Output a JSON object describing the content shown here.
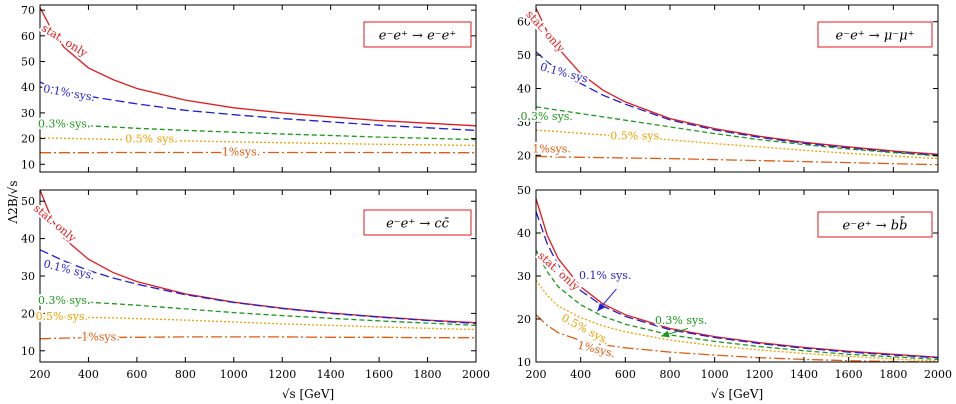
{
  "figure": {
    "ylabel": "Λ2B/√s",
    "xlabel": "√s [GeV]",
    "colors": {
      "stat": "#e41a1c",
      "sys01": "#1f1fd6",
      "sys03": "#1a9a1a",
      "sys05": "#f0a000",
      "sys1": "#e45a10"
    }
  },
  "chart_data": [
    {
      "type": "line",
      "title": "e⁻e⁺ → e⁻e⁺",
      "xlabel": "",
      "ylabel": "",
      "xlim": [
        200,
        2000
      ],
      "ylim": [
        7,
        72
      ],
      "xticks": [
        200,
        400,
        600,
        800,
        1000,
        1200,
        1400,
        1600,
        1800,
        2000
      ],
      "yticks": [
        10,
        20,
        30,
        40,
        50,
        60,
        70
      ],
      "show_xticklabels": false,
      "x": [
        200,
        250,
        300,
        400,
        500,
        600,
        800,
        1000,
        1200,
        1400,
        1600,
        1800,
        2000
      ],
      "series": [
        {
          "key": "stat",
          "label": "stat. only",
          "values": [
            71,
            62,
            55.5,
            47.5,
            43,
            39.5,
            35,
            32,
            30,
            28.5,
            27,
            26,
            25
          ]
        },
        {
          "key": "sys01",
          "label": "0.1% sys.",
          "values": [
            42,
            40,
            38.5,
            36.5,
            35,
            33.5,
            31,
            29.3,
            27.8,
            26.5,
            25.2,
            24.2,
            23.2
          ]
        },
        {
          "key": "sys03",
          "label": "0.3% sys.",
          "values": [
            26,
            25.8,
            25.5,
            25,
            24.5,
            24,
            23.2,
            22.5,
            21.8,
            21.2,
            20.6,
            20.1,
            19.6
          ]
        },
        {
          "key": "sys05",
          "label": "0.5% sys.",
          "values": [
            20.3,
            20.2,
            20.1,
            19.9,
            19.7,
            19.5,
            19.1,
            18.7,
            18.4,
            18.1,
            17.8,
            17.6,
            17.3
          ]
        },
        {
          "key": "sys1",
          "label": "1%sys.",
          "values": [
            14.5,
            14.5,
            14.5,
            14.5,
            14.6,
            14.6,
            14.6,
            14.6,
            14.6,
            14.6,
            14.6,
            14.5,
            14.5
          ]
        }
      ],
      "labels": [
        {
          "key": "stat",
          "text": "stat. only",
          "x": 300,
          "y": 58,
          "rot": 32
        },
        {
          "key": "sys01",
          "text": "0.1% sys.",
          "x": 320,
          "y": 37.5,
          "rot": 10
        },
        {
          "key": "sys03",
          "text": "0.3% sys.",
          "x": 300,
          "y": 25.5,
          "rot": 0
        },
        {
          "key": "sys05",
          "text": "0.5% sys.",
          "x": 660,
          "y": 19.7,
          "rot": 0
        },
        {
          "key": "sys1",
          "text": "1%sys.",
          "x": 1030,
          "y": 14.6,
          "rot": 0
        }
      ]
    },
    {
      "type": "line",
      "title": "e⁻e⁺ → μ⁻μ⁺",
      "xlabel": "",
      "ylabel": "",
      "xlim": [
        200,
        2000
      ],
      "ylim": [
        15,
        65
      ],
      "xticks": [
        200,
        400,
        600,
        800,
        1000,
        1200,
        1400,
        1600,
        1800,
        2000
      ],
      "yticks": [
        20,
        30,
        40,
        50,
        60
      ],
      "show_xticklabels": false,
      "x": [
        200,
        250,
        300,
        400,
        500,
        600,
        800,
        1000,
        1200,
        1400,
        1600,
        1800,
        2000
      ],
      "series": [
        {
          "key": "stat",
          "label": "stat. only",
          "values": [
            64,
            57,
            52,
            44.5,
            39.5,
            36,
            31,
            28,
            25.7,
            23.9,
            22.5,
            21.3,
            20.3
          ]
        },
        {
          "key": "sys01",
          "label": "0.1% sys.",
          "values": [
            51,
            48,
            45.5,
            41.5,
            38,
            35.3,
            30.6,
            27.6,
            25.4,
            23.6,
            22.2,
            21,
            20
          ]
        },
        {
          "key": "sys03",
          "label": "0.3% sys.",
          "values": [
            34.5,
            34,
            33.5,
            32.5,
            31.5,
            30.5,
            28.5,
            26.5,
            24.7,
            23.2,
            21.9,
            20.8,
            19.8
          ]
        },
        {
          "key": "sys05",
          "label": "0.5% sys.",
          "values": [
            27.5,
            27.3,
            27.1,
            26.6,
            26.1,
            25.6,
            24.6,
            23.5,
            22.5,
            21.5,
            20.6,
            19.8,
            19
          ]
        },
        {
          "key": "sys1",
          "label": "1%sys.",
          "values": [
            19.7,
            19.6,
            19.5,
            19.4,
            19.3,
            19.2,
            19,
            18.7,
            18.4,
            18.1,
            17.8,
            17.5,
            17.2
          ]
        }
      ],
      "labels": [
        {
          "key": "stat",
          "text": "stat. only",
          "x": 240,
          "y": 57,
          "rot": 48
        },
        {
          "key": "sys01",
          "text": "0.1% sys",
          "x": 325,
          "y": 44.5,
          "rot": 15
        },
        {
          "key": "sys03",
          "text": "0.3% sys.",
          "x": 248,
          "y": 31.5,
          "rot": 0
        },
        {
          "key": "sys05",
          "text": "0.5% sys.",
          "x": 650,
          "y": 25.6,
          "rot": 0
        },
        {
          "key": "sys1",
          "text": "1%sys.",
          "x": 270,
          "y": 21.8,
          "rot": 0
        }
      ]
    },
    {
      "type": "line",
      "title": "e⁻e⁺ → cc̄",
      "xlabel": "√s [GeV]",
      "ylabel": "",
      "xlim": [
        200,
        2000
      ],
      "ylim": [
        7,
        53
      ],
      "xticks": [
        200,
        400,
        600,
        800,
        1000,
        1200,
        1400,
        1600,
        1800,
        2000
      ],
      "yticks": [
        10,
        20,
        30,
        40,
        50
      ],
      "show_xticklabels": true,
      "x": [
        200,
        250,
        300,
        400,
        500,
        600,
        800,
        1000,
        1200,
        1400,
        1600,
        1800,
        2000
      ],
      "series": [
        {
          "key": "stat",
          "label": "stat. only",
          "values": [
            53,
            45,
            40,
            34.5,
            31,
            28.5,
            25.2,
            23,
            21.4,
            20.1,
            19.1,
            18.2,
            17.5
          ]
        },
        {
          "key": "sys01",
          "label": "0.1% sys.",
          "values": [
            37,
            35.5,
            34,
            31.5,
            29.5,
            27.8,
            25,
            22.9,
            21.3,
            20,
            19,
            18.1,
            17.3
          ]
        },
        {
          "key": "sys03",
          "label": "0.3% sys.",
          "values": [
            23.5,
            23.4,
            23.3,
            23,
            22.6,
            22.2,
            21.2,
            20.2,
            19.4,
            18.7,
            18,
            17.4,
            16.8
          ]
        },
        {
          "key": "sys05",
          "label": "0.5% sys.",
          "values": [
            19,
            19,
            19,
            18.9,
            18.8,
            18.6,
            18.2,
            17.7,
            17.2,
            16.8,
            16.4,
            16,
            15.7
          ]
        },
        {
          "key": "sys1",
          "label": "1%sys.",
          "values": [
            13.2,
            13.3,
            13.4,
            13.5,
            13.6,
            13.6,
            13.7,
            13.7,
            13.7,
            13.6,
            13.6,
            13.5,
            13.5
          ]
        }
      ],
      "labels": [
        {
          "key": "stat",
          "text": "stat. only",
          "x": 260,
          "y": 44,
          "rot": 40
        },
        {
          "key": "sys01",
          "text": "0.1% sys.",
          "x": 320,
          "y": 31.5,
          "rot": 14
        },
        {
          "key": "sys03",
          "text": "0.3% sys.",
          "x": 300,
          "y": 23.3,
          "rot": 0
        },
        {
          "key": "sys05",
          "text": "0.5% sys.",
          "x": 290,
          "y": 19,
          "rot": 0
        },
        {
          "key": "sys1",
          "text": "1%sys.",
          "x": 450,
          "y": 13.5,
          "rot": 0
        }
      ]
    },
    {
      "type": "line",
      "title": "e⁻e⁺ → bb̄",
      "xlabel": "√s [GeV]",
      "ylabel": "",
      "xlim": [
        200,
        2000
      ],
      "ylim": [
        10,
        50
      ],
      "xticks": [
        200,
        400,
        600,
        800,
        1000,
        1200,
        1400,
        1600,
        1800,
        2000
      ],
      "yticks": [
        10,
        20,
        30,
        40,
        50
      ],
      "show_xticklabels": true,
      "x": [
        200,
        250,
        300,
        400,
        500,
        600,
        800,
        1000,
        1200,
        1400,
        1600,
        1800,
        2000
      ],
      "series": [
        {
          "key": "stat",
          "label": "stat. only",
          "values": [
            48,
            39.5,
            34,
            27.5,
            23.5,
            21,
            17.8,
            15.9,
            14.5,
            13.4,
            12.5,
            11.8,
            11.1
          ]
        },
        {
          "key": "sys01",
          "label": "0.1% sys.",
          "values": [
            45,
            37.5,
            32.5,
            26.6,
            23,
            20.6,
            17.5,
            15.7,
            14.3,
            13.2,
            12.3,
            11.6,
            11
          ]
        },
        {
          "key": "sys03",
          "label": "0.3% sys.",
          "values": [
            36,
            31,
            27.5,
            23.3,
            20.6,
            18.8,
            16.3,
            14.8,
            13.6,
            12.6,
            11.8,
            11.2,
            10.6
          ]
        },
        {
          "key": "sys05",
          "label": "0.5% sys.",
          "values": [
            29,
            25.5,
            23,
            20.3,
            18.4,
            17,
            15.1,
            13.8,
            12.8,
            12,
            11.3,
            10.7,
            10.2
          ]
        },
        {
          "key": "sys1",
          "label": "1%sys.",
          "values": [
            21,
            18.5,
            16.8,
            15,
            14,
            13.3,
            12.3,
            11.6,
            11,
            10.6,
            10.3,
            10.1,
            10
          ]
        }
      ],
      "labels": [
        {
          "key": "stat",
          "text": "stat. only",
          "x": 300,
          "y": 31,
          "rot": 42
        },
        {
          "key": "sys01",
          "text": "0.1% sys.",
          "x": 510,
          "y": 30,
          "rot": 0
        },
        {
          "key": "sys03",
          "text": "0.3% sys.",
          "x": 850,
          "y": 19.5,
          "rot": 0
        },
        {
          "key": "sys05",
          "text": "0.5% sys.",
          "x": 420,
          "y": 17.5,
          "rot": 28
        },
        {
          "key": "sys1",
          "text": "1%sys.",
          "x": 470,
          "y": 12.8,
          "rot": 14
        }
      ],
      "arrows": [
        {
          "key": "sys01",
          "from": [
            560,
            27
          ],
          "to": [
            475,
            21.8
          ]
        },
        {
          "key": "sys03",
          "from": [
            880,
            17.8
          ],
          "to": [
            760,
            16
          ]
        }
      ]
    }
  ]
}
